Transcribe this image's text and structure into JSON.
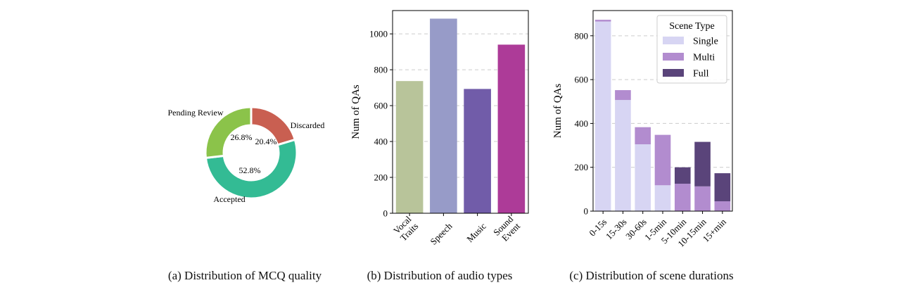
{
  "chart_data": [
    {
      "type": "pie",
      "slices": [
        {
          "label": "Accepted",
          "value": 52.8,
          "pct_label": "52.8%",
          "color": "#33bb94"
        },
        {
          "label": "Discarded",
          "value": 20.4,
          "pct_label": "20.4%",
          "color": "#c95f51"
        },
        {
          "label": "Pending Review",
          "value": 26.8,
          "pct_label": "26.8%",
          "color": "#8bc34a"
        }
      ],
      "caption": "(a) Distribution of MCQ quality"
    },
    {
      "type": "bar",
      "categories": [
        "Vocal\nTraits",
        "Speech",
        "Music",
        "Sound\nEvent"
      ],
      "values": [
        737,
        1085,
        693,
        940
      ],
      "colors": [
        "#b8c49a",
        "#979bc8",
        "#715ca9",
        "#ad3b98"
      ],
      "ylabel": "Num of QAs",
      "ylim": [
        0,
        1130
      ],
      "yticks": [
        0,
        200,
        400,
        600,
        800,
        1000
      ],
      "grid": true,
      "caption": "(b) Distribution of audio types"
    },
    {
      "type": "bar",
      "stacked": true,
      "categories": [
        "0-15s",
        "15-30s",
        "30-60s",
        "1-5min",
        "5-10min",
        "10-15min",
        "15+min"
      ],
      "series": [
        {
          "name": "Single",
          "values": [
            865,
            507,
            305,
            118,
            0,
            0,
            0
          ],
          "color": "#d7d5f3"
        },
        {
          "name": "Multi",
          "values": [
            8,
            45,
            78,
            230,
            125,
            113,
            45
          ],
          "color": "#b28ccf"
        },
        {
          "name": "Full",
          "values": [
            0,
            0,
            0,
            0,
            75,
            203,
            128
          ],
          "color": "#5a447a"
        }
      ],
      "ylabel": "Num of QAs",
      "ylim": [
        0,
        915
      ],
      "yticks": [
        0,
        200,
        400,
        600,
        800
      ],
      "grid": true,
      "legend_title": "Scene Type",
      "legend": "top-right",
      "caption": "(c) Distribution of scene durations"
    }
  ]
}
